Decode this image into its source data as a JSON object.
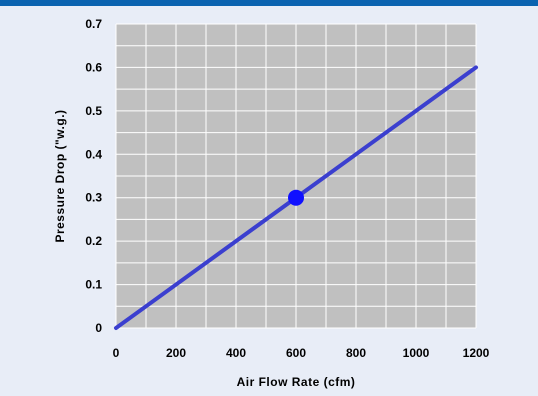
{
  "chart_data": {
    "type": "line",
    "xlabel": "Air Flow Rate (cfm)",
    "ylabel": "Pressure Drop (\"w.g.)",
    "xlim": [
      0,
      1200
    ],
    "ylim": [
      0,
      0.7
    ],
    "x_ticks": [
      0,
      200,
      400,
      600,
      800,
      1000,
      1200
    ],
    "x_tick_labels": [
      "0",
      "200",
      "400",
      "600",
      "800",
      "1000",
      "1200"
    ],
    "y_ticks": [
      0,
      0.1,
      0.2,
      0.3,
      0.4,
      0.5,
      0.6,
      0.7
    ],
    "y_tick_labels": [
      "0",
      "0.1",
      "0.2",
      "0.3",
      "0.4",
      "0.5",
      "0.6",
      "0.7"
    ],
    "grid": true,
    "series": [
      {
        "x": [
          0,
          1200
        ],
        "y": [
          0,
          0.6
        ]
      }
    ],
    "highlight_point": {
      "x": 600,
      "y": 0.3
    },
    "colors": {
      "background": "#e8edf7",
      "plot_area": "#c0c0c0",
      "grid": "#ffffff",
      "line": "#3b3fcf",
      "point": "#1010ff",
      "top_bar": "#0b63b0"
    }
  }
}
